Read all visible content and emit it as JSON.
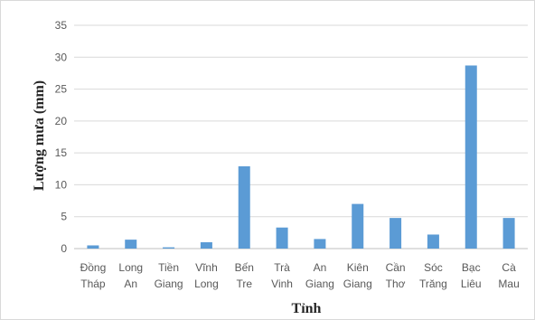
{
  "chart_data": {
    "type": "bar",
    "categories": [
      "Đồng Tháp",
      "Long An",
      "Tiền Giang",
      "Vĩnh Long",
      "Bến Tre",
      "Trà Vinh",
      "An Giang",
      "Kiên Giang",
      "Cần Thơ",
      "Sóc Trăng",
      "Bạc Liêu",
      "Cà Mau"
    ],
    "category_lines": [
      [
        "Đồng",
        "Tháp"
      ],
      [
        "Long",
        "An"
      ],
      [
        "Tiền",
        "Giang"
      ],
      [
        "Vĩnh",
        "Long"
      ],
      [
        "Bến",
        "Tre"
      ],
      [
        "Trà",
        "Vinh"
      ],
      [
        "An",
        "Giang"
      ],
      [
        "Kiên",
        "Giang"
      ],
      [
        "Cần",
        "Thơ"
      ],
      [
        "Sóc",
        "Trăng"
      ],
      [
        "Bạc",
        "Liêu"
      ],
      [
        "Cà",
        "Mau"
      ]
    ],
    "values": [
      0.5,
      1.4,
      0.2,
      1.0,
      12.9,
      3.3,
      1.5,
      7.0,
      4.8,
      2.2,
      28.7,
      4.8
    ],
    "xlabel": "Tỉnh",
    "ylabel": "Lượng mưa (mm)",
    "ylim": [
      0,
      35
    ],
    "yticks": [
      "0",
      "5",
      "10",
      "15",
      "20",
      "25",
      "30",
      "35"
    ],
    "grid": true,
    "bar_color": "#5b9bd5",
    "grid_color": "#d9d9d9"
  }
}
